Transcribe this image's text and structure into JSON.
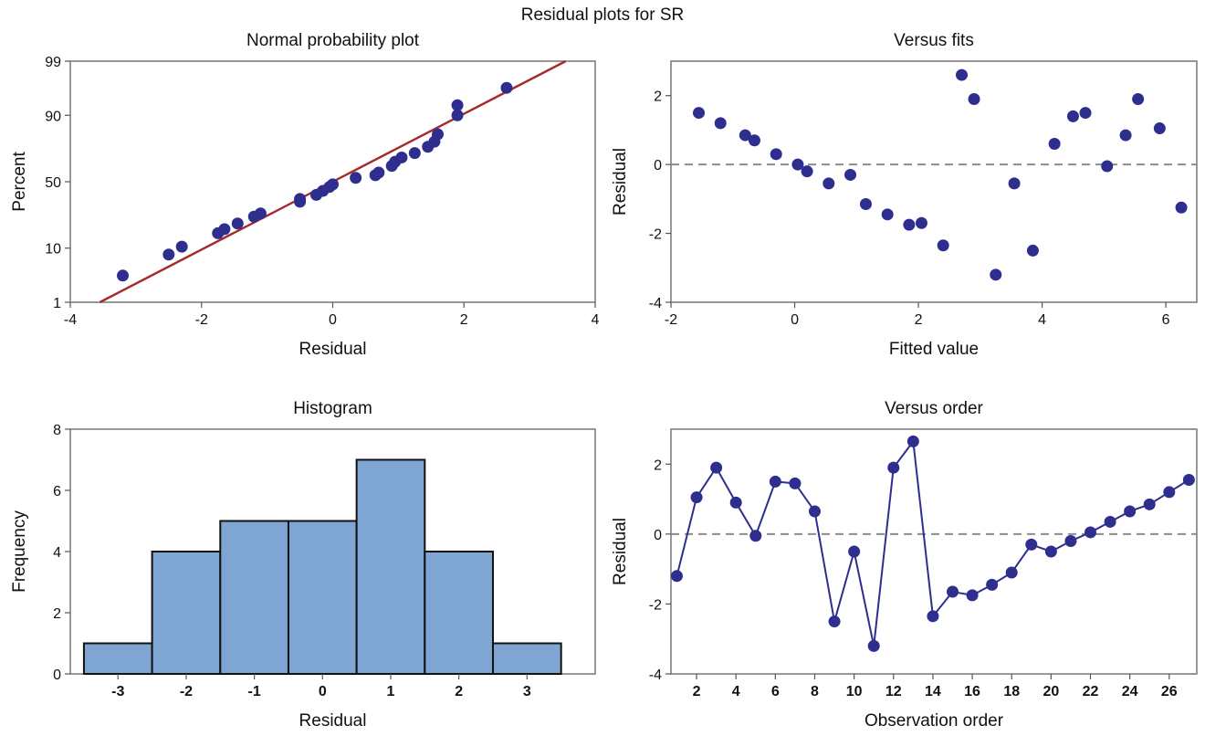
{
  "figure_title": "Residual plots for SR",
  "chart_data": [
    {
      "id": "normal",
      "type": "scatter",
      "title": "Normal probability plot",
      "xlabel": "Residual",
      "ylabel": "Percent",
      "xlim": [
        -4,
        4
      ],
      "ylim": [
        1,
        99
      ],
      "y_scale": "normal-probability",
      "xticks": [
        -4,
        -2,
        0,
        2,
        4
      ],
      "yticks": [
        1,
        10,
        50,
        90,
        99
      ],
      "reference_line": {
        "x": [
          -3.55,
          3.55
        ],
        "y": [
          1,
          99
        ],
        "color": "#a52a2a"
      },
      "marker_color": "#2e2e8f",
      "points": [
        {
          "x": -3.2,
          "y": 3.5
        },
        {
          "x": -2.5,
          "y": 8.0
        },
        {
          "x": -2.3,
          "y": 10.5
        },
        {
          "x": -1.75,
          "y": 16.0
        },
        {
          "x": -1.65,
          "y": 18.0
        },
        {
          "x": -1.45,
          "y": 21.0
        },
        {
          "x": -1.2,
          "y": 25.0
        },
        {
          "x": -1.1,
          "y": 27.0
        },
        {
          "x": -0.5,
          "y": 35.0
        },
        {
          "x": -0.5,
          "y": 37.0
        },
        {
          "x": -0.25,
          "y": 40.0
        },
        {
          "x": -0.15,
          "y": 43.0
        },
        {
          "x": -0.05,
          "y": 46.0
        },
        {
          "x": 0.0,
          "y": 48.0
        },
        {
          "x": 0.35,
          "y": 53.0
        },
        {
          "x": 0.65,
          "y": 55.0
        },
        {
          "x": 0.7,
          "y": 57.0
        },
        {
          "x": 0.9,
          "y": 62.0
        },
        {
          "x": 0.95,
          "y": 65.0
        },
        {
          "x": 1.05,
          "y": 68.0
        },
        {
          "x": 1.25,
          "y": 71.0
        },
        {
          "x": 1.45,
          "y": 75.0
        },
        {
          "x": 1.55,
          "y": 78.0
        },
        {
          "x": 1.6,
          "y": 82.0
        },
        {
          "x": 1.9,
          "y": 90.0
        },
        {
          "x": 1.9,
          "y": 93.0
        },
        {
          "x": 2.65,
          "y": 96.5
        }
      ]
    },
    {
      "id": "fits",
      "type": "scatter",
      "title": "Versus fits",
      "xlabel": "Fitted value",
      "ylabel": "Residual",
      "xlim": [
        -2,
        6.5
      ],
      "ylim": [
        -4,
        3
      ],
      "xticks": [
        -2,
        0,
        2,
        4,
        6
      ],
      "yticks": [
        -4,
        -2,
        0,
        2
      ],
      "reference_y": 0,
      "marker_color": "#2e2e8f",
      "points": [
        {
          "x": -1.55,
          "y": 1.5
        },
        {
          "x": -1.2,
          "y": 1.2
        },
        {
          "x": -0.8,
          "y": 0.85
        },
        {
          "x": -0.65,
          "y": 0.7
        },
        {
          "x": -0.3,
          "y": 0.3
        },
        {
          "x": 0.05,
          "y": 0.0
        },
        {
          "x": 0.2,
          "y": -0.2
        },
        {
          "x": 0.55,
          "y": -0.55
        },
        {
          "x": 0.9,
          "y": -0.3
        },
        {
          "x": 1.15,
          "y": -1.15
        },
        {
          "x": 1.5,
          "y": -1.45
        },
        {
          "x": 1.85,
          "y": -1.75
        },
        {
          "x": 2.05,
          "y": -1.7
        },
        {
          "x": 2.4,
          "y": -2.35
        },
        {
          "x": 2.7,
          "y": 2.6
        },
        {
          "x": 2.9,
          "y": 1.9
        },
        {
          "x": 3.25,
          "y": -3.2
        },
        {
          "x": 3.55,
          "y": -0.55
        },
        {
          "x": 3.85,
          "y": -2.5
        },
        {
          "x": 4.2,
          "y": 0.6
        },
        {
          "x": 4.5,
          "y": 1.4
        },
        {
          "x": 4.7,
          "y": 1.5
        },
        {
          "x": 5.05,
          "y": -0.05
        },
        {
          "x": 5.35,
          "y": 0.85
        },
        {
          "x": 5.55,
          "y": 1.9
        },
        {
          "x": 5.9,
          "y": 1.05
        },
        {
          "x": 6.25,
          "y": -1.25
        }
      ]
    },
    {
      "id": "hist",
      "type": "bar",
      "title": "Histogram",
      "xlabel": "Residual",
      "ylabel": "Frequency",
      "xlim": [
        -3.5,
        3.5
      ],
      "ylim": [
        0,
        8
      ],
      "yticks": [
        0,
        2,
        4,
        6,
        8
      ],
      "categories": [
        "-3",
        "-2",
        "-1",
        "0",
        "1",
        "2",
        "3"
      ],
      "values": [
        1,
        4,
        5,
        5,
        7,
        4,
        1
      ],
      "bar_color": "#7fa6d2",
      "edge_color": "#111111"
    },
    {
      "id": "order",
      "type": "line",
      "title": "Versus order",
      "xlabel": "Observation order",
      "ylabel": "Residual",
      "xlim": [
        0.7,
        27.4
      ],
      "ylim": [
        -4,
        3
      ],
      "xticks": [
        2,
        4,
        6,
        8,
        10,
        12,
        14,
        16,
        18,
        20,
        22,
        24,
        26
      ],
      "yticks": [
        -4,
        -2,
        0,
        2
      ],
      "reference_y": 0,
      "marker_color": "#2e2e8f",
      "x": [
        1,
        2,
        3,
        4,
        5,
        6,
        7,
        8,
        9,
        10,
        11,
        12,
        13,
        14,
        15,
        16,
        17,
        18,
        19,
        20,
        21,
        22,
        23,
        24,
        25,
        26,
        27
      ],
      "y": [
        -1.2,
        1.05,
        1.9,
        0.9,
        -0.05,
        1.5,
        1.45,
        0.65,
        -2.5,
        -0.5,
        -3.2,
        1.9,
        2.65,
        -2.35,
        -1.65,
        -1.75,
        -1.45,
        -1.1,
        -0.3,
        -0.5,
        -0.2,
        0.05,
        0.35,
        0.65,
        0.85,
        1.2,
        1.55
      ]
    }
  ]
}
